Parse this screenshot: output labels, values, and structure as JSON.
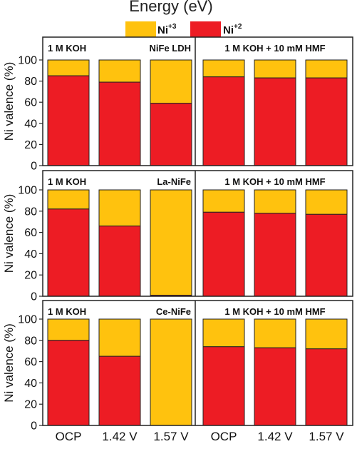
{
  "header": {
    "title": "Energy (eV)"
  },
  "legend": [
    {
      "base": "Ni",
      "sup": "+3",
      "color": "#FFC20E"
    },
    {
      "base": "Ni",
      "sup": "+2",
      "color": "#ED1C24"
    }
  ],
  "chart_data": {
    "type": "bar",
    "stacked": true,
    "ylabel": "Ni valence (%)",
    "ylim": [
      0,
      100
    ],
    "yticks": [
      0,
      20,
      40,
      60,
      80,
      100
    ],
    "categories": [
      "OCP",
      "1.42 V",
      "1.57 V",
      "OCP",
      "1.42 V",
      "1.57 V"
    ],
    "series_colors": {
      "Ni+2": "#ED1C24",
      "Ni+3": "#FFC20E"
    },
    "panels": [
      {
        "sample": "NiFe LDH",
        "left_condition": "1 M KOH",
        "right_condition": "1 M KOH + 10 mM HMF",
        "series": [
          {
            "name": "Ni+2",
            "values": [
              85,
              79,
              59,
              84,
              83,
              83
            ]
          },
          {
            "name": "Ni+3",
            "values": [
              15,
              21,
              41,
              16,
              17,
              17
            ]
          }
        ]
      },
      {
        "sample": "La-NiFe",
        "left_condition": "1 M KOH",
        "right_condition": "1 M KOH + 10 mM HMF",
        "series": [
          {
            "name": "Ni+2",
            "values": [
              82,
              66,
              1,
              79,
              78,
              77
            ]
          },
          {
            "name": "Ni+3",
            "values": [
              18,
              34,
              99,
              21,
              22,
              23
            ]
          }
        ]
      },
      {
        "sample": "Ce-NiFe",
        "left_condition": "1 M KOH",
        "right_condition": "1 M KOH + 10 mM HMF",
        "series": [
          {
            "name": "Ni+2",
            "values": [
              80,
              65,
              0,
              74,
              73,
              72
            ]
          },
          {
            "name": "Ni+3",
            "values": [
              20,
              35,
              100,
              26,
              27,
              28
            ]
          }
        ]
      }
    ]
  }
}
